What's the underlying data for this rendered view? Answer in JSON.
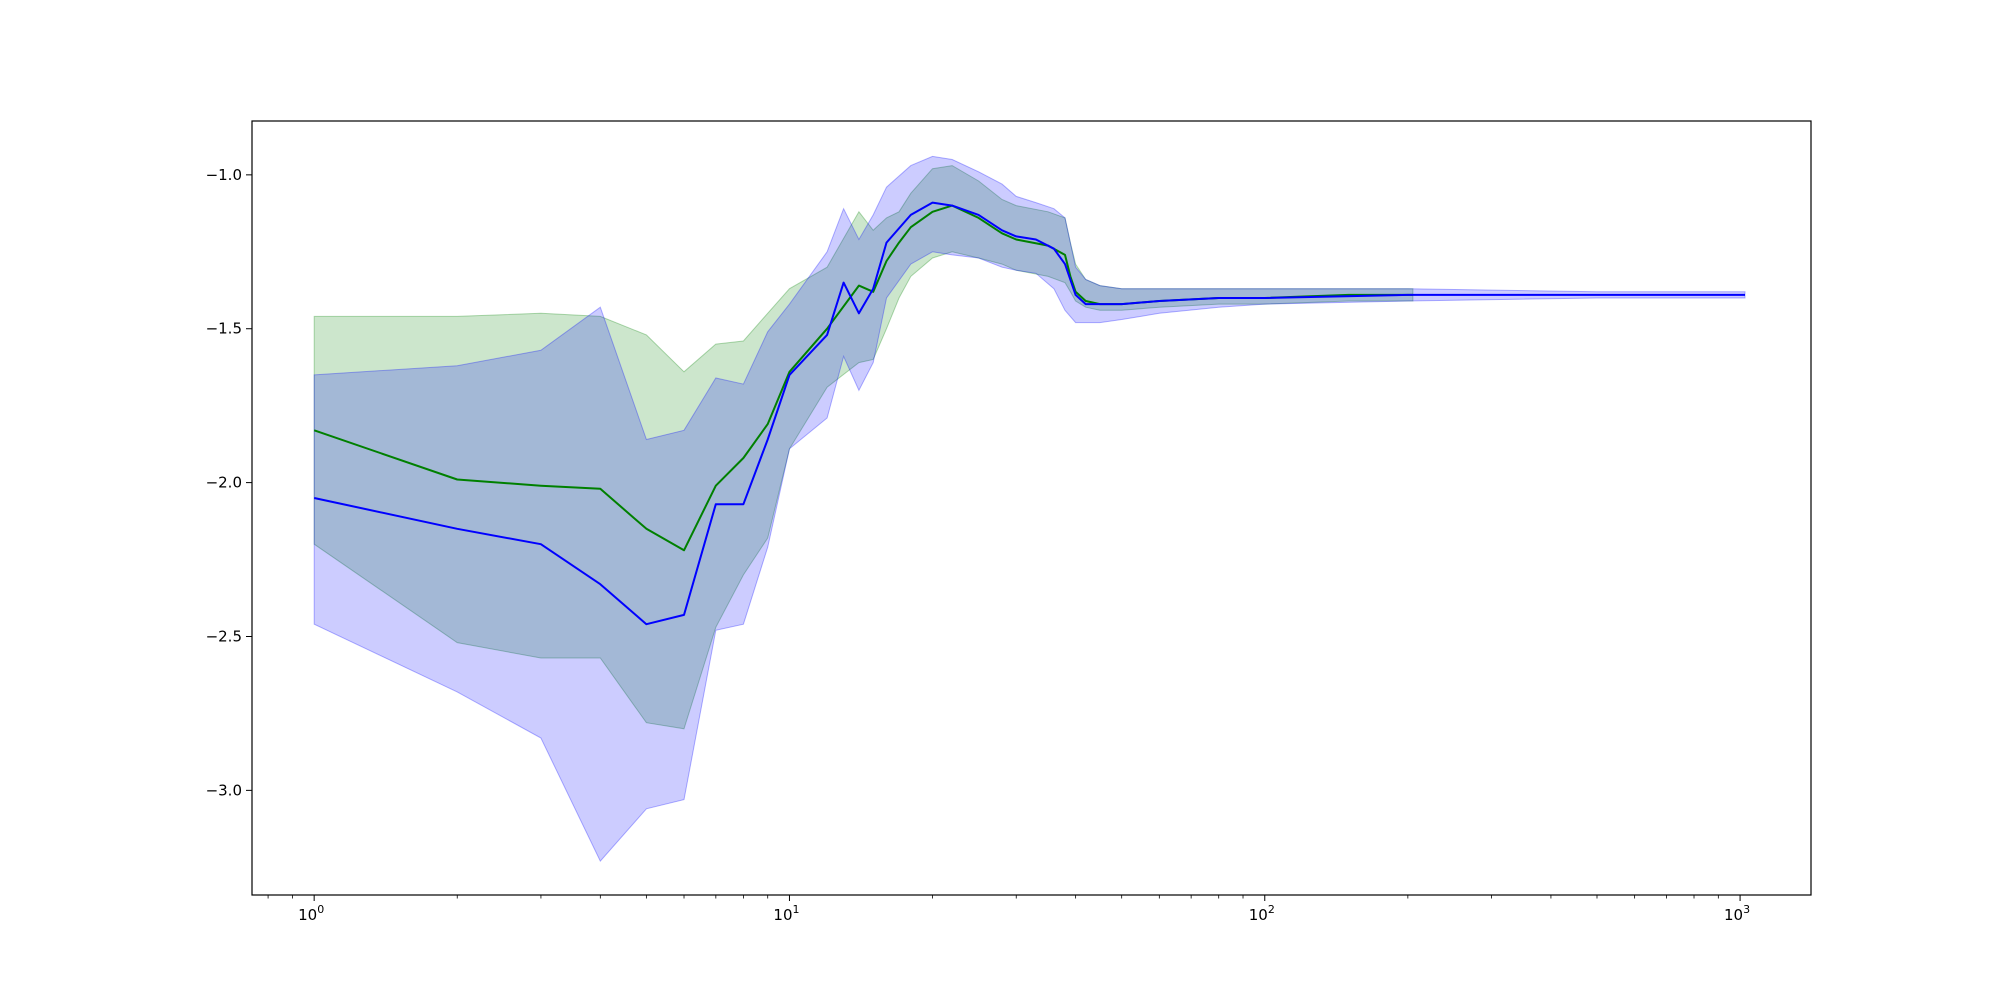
{
  "chart_data": {
    "type": "line",
    "title": "",
    "xlabel": "",
    "ylabel": "",
    "x_scale": "log",
    "xlim": [
      0.74,
      1410
    ],
    "ylim": [
      -3.34,
      -0.825
    ],
    "grid": false,
    "x_ticks": [
      {
        "value": 1,
        "base": "10",
        "exp": "0"
      },
      {
        "value": 10,
        "base": "10",
        "exp": "1"
      },
      {
        "value": 100,
        "base": "10",
        "exp": "2"
      },
      {
        "value": 1000,
        "base": "10",
        "exp": "3"
      }
    ],
    "y_ticks": [
      {
        "value": -1.0,
        "label": "−1.0"
      },
      {
        "value": -1.5,
        "label": "−1.5"
      },
      {
        "value": -2.0,
        "label": "−2.0"
      },
      {
        "value": -2.5,
        "label": "−2.5"
      },
      {
        "value": -3.0,
        "label": "−3.0"
      }
    ],
    "series": [
      {
        "color": "#008000",
        "band_color": "#008000",
        "band_opacity": 0.2,
        "points": [
          [
            1,
            -1.83,
            -1.46,
            -2.2
          ],
          [
            2,
            -1.99,
            -1.46,
            -2.52
          ],
          [
            3,
            -2.01,
            -1.45,
            -2.57
          ],
          [
            4,
            -2.02,
            -1.46,
            -2.57
          ],
          [
            5,
            -2.15,
            -1.52,
            -2.78
          ],
          [
            6,
            -2.22,
            -1.64,
            -2.8
          ],
          [
            7,
            -2.01,
            -1.55,
            -2.47
          ],
          [
            8,
            -1.92,
            -1.54,
            -2.3
          ],
          [
            9,
            -1.81,
            -1.45,
            -2.18
          ],
          [
            10,
            -1.64,
            -1.37,
            -1.89
          ],
          [
            12,
            -1.5,
            -1.3,
            -1.69
          ],
          [
            14,
            -1.36,
            -1.12,
            -1.61
          ],
          [
            15,
            -1.38,
            -1.18,
            -1.6
          ],
          [
            16,
            -1.28,
            -1.14,
            -1.5
          ],
          [
            17,
            -1.22,
            -1.12,
            -1.4
          ],
          [
            18,
            -1.17,
            -1.06,
            -1.33
          ],
          [
            20,
            -1.12,
            -0.98,
            -1.27
          ],
          [
            22,
            -1.1,
            -0.97,
            -1.25
          ],
          [
            25,
            -1.14,
            -1.02,
            -1.27
          ],
          [
            28,
            -1.19,
            -1.08,
            -1.29
          ],
          [
            30,
            -1.21,
            -1.1,
            -1.31
          ],
          [
            35,
            -1.23,
            -1.12,
            -1.33
          ],
          [
            38,
            -1.26,
            -1.14,
            -1.35
          ],
          [
            39,
            -1.33,
            -1.22,
            -1.38
          ],
          [
            40,
            -1.38,
            -1.29,
            -1.41
          ],
          [
            42,
            -1.41,
            -1.34,
            -1.43
          ],
          [
            45,
            -1.42,
            -1.36,
            -1.44
          ],
          [
            50,
            -1.42,
            -1.37,
            -1.44
          ],
          [
            60,
            -1.41,
            -1.37,
            -1.43
          ],
          [
            80,
            -1.4,
            -1.37,
            -1.42
          ],
          [
            100,
            -1.4,
            -1.37,
            -1.42
          ],
          [
            150,
            -1.39,
            -1.37,
            -1.41
          ],
          [
            205,
            -1.39,
            -1.37,
            -1.41
          ]
        ]
      },
      {
        "color": "#0000ff",
        "band_color": "#0000ff",
        "band_opacity": 0.2,
        "points": [
          [
            1,
            -2.05,
            -1.65,
            -2.46
          ],
          [
            2,
            -2.15,
            -1.62,
            -2.68
          ],
          [
            3,
            -2.2,
            -1.57,
            -2.83
          ],
          [
            4,
            -2.33,
            -1.43,
            -3.23
          ],
          [
            5,
            -2.46,
            -1.86,
            -3.06
          ],
          [
            6,
            -2.43,
            -1.83,
            -3.03
          ],
          [
            7,
            -2.07,
            -1.66,
            -2.48
          ],
          [
            8,
            -2.07,
            -1.68,
            -2.46
          ],
          [
            9,
            -1.86,
            -1.51,
            -2.21
          ],
          [
            10,
            -1.65,
            -1.42,
            -1.89
          ],
          [
            12,
            -1.52,
            -1.25,
            -1.79
          ],
          [
            13,
            -1.35,
            -1.11,
            -1.59
          ],
          [
            14,
            -1.45,
            -1.21,
            -1.7
          ],
          [
            15,
            -1.37,
            -1.13,
            -1.61
          ],
          [
            16,
            -1.22,
            -1.04,
            -1.4
          ],
          [
            18,
            -1.13,
            -0.97,
            -1.29
          ],
          [
            20,
            -1.09,
            -0.94,
            -1.25
          ],
          [
            22,
            -1.1,
            -0.95,
            -1.26
          ],
          [
            25,
            -1.13,
            -0.99,
            -1.27
          ],
          [
            28,
            -1.18,
            -1.03,
            -1.3
          ],
          [
            30,
            -1.2,
            -1.07,
            -1.31
          ],
          [
            33,
            -1.21,
            -1.09,
            -1.32
          ],
          [
            36,
            -1.24,
            -1.11,
            -1.37
          ],
          [
            38,
            -1.29,
            -1.14,
            -1.44
          ],
          [
            40,
            -1.39,
            -1.3,
            -1.48
          ],
          [
            42,
            -1.42,
            -1.34,
            -1.48
          ],
          [
            45,
            -1.42,
            -1.36,
            -1.48
          ],
          [
            50,
            -1.42,
            -1.37,
            -1.47
          ],
          [
            60,
            -1.41,
            -1.37,
            -1.45
          ],
          [
            80,
            -1.4,
            -1.37,
            -1.43
          ],
          [
            100,
            -1.4,
            -1.37,
            -1.42
          ],
          [
            200,
            -1.39,
            -1.37,
            -1.41
          ],
          [
            500,
            -1.39,
            -1.38,
            -1.4
          ],
          [
            1024,
            -1.39,
            -1.38,
            -1.4
          ]
        ]
      }
    ]
  }
}
